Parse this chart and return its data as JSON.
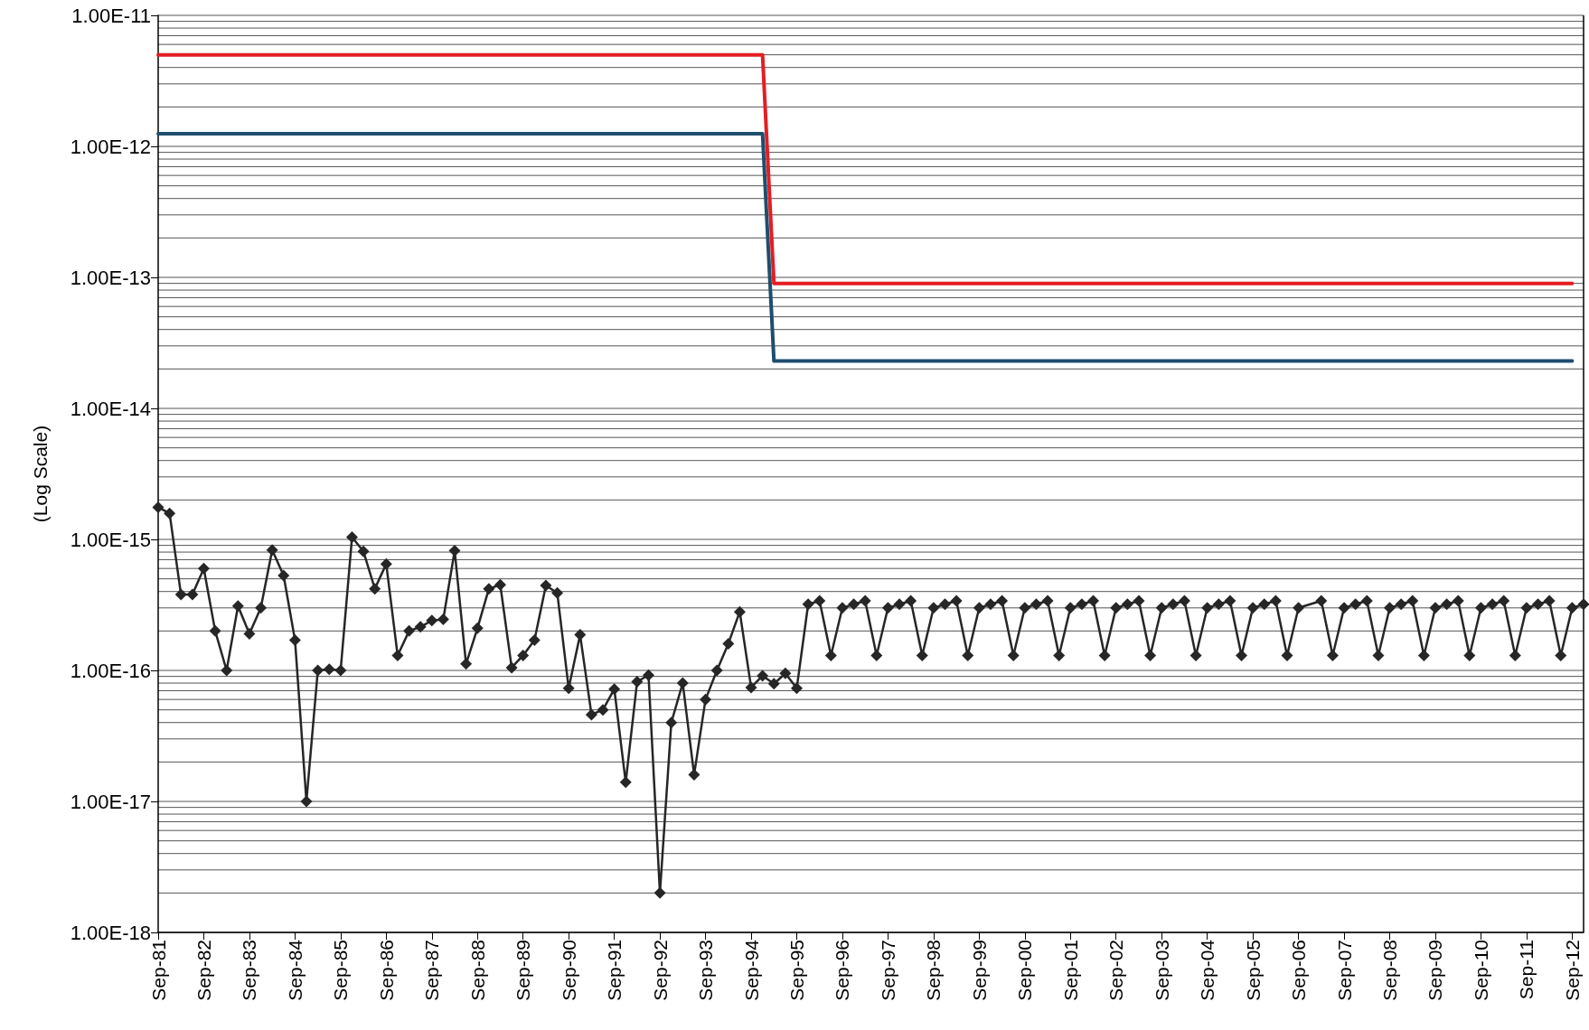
{
  "chart_data": {
    "type": "line",
    "ylabel": "(Log Scale)",
    "log": "y",
    "grid": "y",
    "line_style": "solid",
    "ylim": [
      1e-18,
      1e-11
    ],
    "yticks": [
      {
        "value": 1e-18,
        "label": "1.00E-18"
      },
      {
        "value": 1e-17,
        "label": "1.00E-17"
      },
      {
        "value": 1e-16,
        "label": "1.00E-16"
      },
      {
        "value": 1e-15,
        "label": "1.00E-15"
      },
      {
        "value": 1e-14,
        "label": "1.00E-14"
      },
      {
        "value": 1e-13,
        "label": "1.00E-13"
      },
      {
        "value": 1e-12,
        "label": "1.00E-12"
      },
      {
        "value": 1e-11,
        "label": "1.00E-11"
      }
    ],
    "categories": [
      "Sep-81",
      null,
      null,
      null,
      "Sep-82",
      null,
      null,
      null,
      "Sep-83",
      null,
      null,
      null,
      "Sep-84",
      null,
      null,
      null,
      "Sep-85",
      null,
      null,
      null,
      "Sep-86",
      null,
      null,
      null,
      "Sep-87",
      null,
      null,
      null,
      "Sep-88",
      null,
      null,
      null,
      "Sep-89",
      null,
      null,
      null,
      "Sep-90",
      null,
      null,
      null,
      "Sep-91",
      null,
      null,
      null,
      "Sep-92",
      null,
      null,
      null,
      "Sep-93",
      null,
      null,
      null,
      "Sep-94",
      null,
      null,
      null,
      "Sep-95",
      null,
      null,
      null,
      "Sep-96",
      null,
      null,
      null,
      "Sep-97",
      null,
      null,
      null,
      "Sep-98",
      null,
      null,
      null,
      "Sep-99",
      null,
      null,
      null,
      "Sep-00",
      null,
      null,
      null,
      "Sep-01",
      null,
      null,
      null,
      "Sep-02",
      null,
      null,
      null,
      "Sep-03",
      null,
      null,
      null,
      "Sep-04",
      null,
      null,
      null,
      "Sep-05",
      null,
      null,
      null,
      "Sep-06",
      null,
      null,
      null,
      "Sep-07",
      null,
      null,
      null,
      "Sep-08",
      null,
      null,
      null,
      "Sep-09",
      null,
      null,
      null,
      "Sep-10",
      null,
      null,
      null,
      "Sep-11",
      null,
      null,
      null,
      "Sep-12",
      null
    ],
    "series": [
      {
        "color": "#e31e24",
        "marker": "none",
        "values": [
          5e-12,
          5e-12,
          5e-12,
          5e-12,
          5e-12,
          5e-12,
          5e-12,
          5e-12,
          5e-12,
          5e-12,
          5e-12,
          5e-12,
          5e-12,
          5e-12,
          5e-12,
          5e-12,
          5e-12,
          5e-12,
          5e-12,
          5e-12,
          5e-12,
          5e-12,
          5e-12,
          5e-12,
          5e-12,
          5e-12,
          5e-12,
          5e-12,
          5e-12,
          5e-12,
          5e-12,
          5e-12,
          5e-12,
          5e-12,
          5e-12,
          5e-12,
          5e-12,
          5e-12,
          5e-12,
          5e-12,
          5e-12,
          5e-12,
          5e-12,
          5e-12,
          5e-12,
          5e-12,
          5e-12,
          5e-12,
          5e-12,
          5e-12,
          5e-12,
          5e-12,
          5e-12,
          5e-12,
          9e-14,
          9e-14,
          9e-14,
          9e-14,
          9e-14,
          9e-14,
          9e-14,
          9e-14,
          9e-14,
          9e-14,
          9e-14,
          9e-14,
          9e-14,
          9e-14,
          9e-14,
          9e-14,
          9e-14,
          9e-14,
          9e-14,
          9e-14,
          9e-14,
          9e-14,
          9e-14,
          9e-14,
          9e-14,
          9e-14,
          9e-14,
          9e-14,
          9e-14,
          9e-14,
          9e-14,
          9e-14,
          9e-14,
          9e-14,
          9e-14,
          9e-14,
          9e-14,
          9e-14,
          9e-14,
          9e-14,
          9e-14,
          9e-14,
          9e-14,
          9e-14,
          9e-14,
          9e-14,
          9e-14,
          9e-14,
          9e-14,
          9e-14,
          9e-14,
          9e-14,
          9e-14,
          9e-14,
          9e-14,
          9e-14,
          9e-14,
          9e-14,
          9e-14,
          9e-14,
          9e-14,
          9e-14,
          9e-14,
          9e-14,
          9e-14,
          9e-14,
          9e-14,
          9e-14,
          9e-14,
          9e-14,
          9e-14,
          null
        ]
      },
      {
        "color": "#1f4e6e",
        "marker": "none",
        "values": [
          1.25e-12,
          1.25e-12,
          1.25e-12,
          1.25e-12,
          1.25e-12,
          1.25e-12,
          1.25e-12,
          1.25e-12,
          1.25e-12,
          1.25e-12,
          1.25e-12,
          1.25e-12,
          1.25e-12,
          1.25e-12,
          1.25e-12,
          1.25e-12,
          1.25e-12,
          1.25e-12,
          1.25e-12,
          1.25e-12,
          1.25e-12,
          1.25e-12,
          1.25e-12,
          1.25e-12,
          1.25e-12,
          1.25e-12,
          1.25e-12,
          1.25e-12,
          1.25e-12,
          1.25e-12,
          1.25e-12,
          1.25e-12,
          1.25e-12,
          1.25e-12,
          1.25e-12,
          1.25e-12,
          1.25e-12,
          1.25e-12,
          1.25e-12,
          1.25e-12,
          1.25e-12,
          1.25e-12,
          1.25e-12,
          1.25e-12,
          1.25e-12,
          1.25e-12,
          1.25e-12,
          1.25e-12,
          1.25e-12,
          1.25e-12,
          1.25e-12,
          1.25e-12,
          1.25e-12,
          1.25e-12,
          2.3e-14,
          2.3e-14,
          2.3e-14,
          2.3e-14,
          2.3e-14,
          2.3e-14,
          2.3e-14,
          2.3e-14,
          2.3e-14,
          2.3e-14,
          2.3e-14,
          2.3e-14,
          2.3e-14,
          2.3e-14,
          2.3e-14,
          2.3e-14,
          2.3e-14,
          2.3e-14,
          2.3e-14,
          2.3e-14,
          2.3e-14,
          2.3e-14,
          2.3e-14,
          2.3e-14,
          2.3e-14,
          2.3e-14,
          2.3e-14,
          2.3e-14,
          2.3e-14,
          2.3e-14,
          2.3e-14,
          2.3e-14,
          2.3e-14,
          2.3e-14,
          2.3e-14,
          2.3e-14,
          2.3e-14,
          2.3e-14,
          2.3e-14,
          2.3e-14,
          2.3e-14,
          2.3e-14,
          2.3e-14,
          2.3e-14,
          2.3e-14,
          2.3e-14,
          2.3e-14,
          2.3e-14,
          2.3e-14,
          2.3e-14,
          2.3e-14,
          2.3e-14,
          2.3e-14,
          2.3e-14,
          2.3e-14,
          2.3e-14,
          2.3e-14,
          2.3e-14,
          2.3e-14,
          2.3e-14,
          2.3e-14,
          2.3e-14,
          2.3e-14,
          2.3e-14,
          2.3e-14,
          2.3e-14,
          2.3e-14,
          2.3e-14,
          2.3e-14,
          2.3e-14,
          2.3e-14,
          null
        ]
      },
      {
        "color": "#262626",
        "marker": "diamond",
        "values": [
          1.76e-15,
          1.58e-15,
          3.8e-16,
          3.8e-16,
          6e-16,
          2e-16,
          1e-16,
          3.1e-16,
          1.9e-16,
          3e-16,
          8.3e-16,
          5.3e-16,
          1.7e-16,
          1e-17,
          1e-16,
          1.02e-16,
          1e-16,
          1.04e-15,
          8.1e-16,
          4.2e-16,
          6.5e-16,
          1.3e-16,
          2e-16,
          2.15e-16,
          2.4e-16,
          2.45e-16,
          8.2e-16,
          1.12e-16,
          2.1e-16,
          4.2e-16,
          4.5e-16,
          1.05e-16,
          1.3e-16,
          1.7e-16,
          4.45e-16,
          3.9e-16,
          7.3e-17,
          1.87e-16,
          4.6e-17,
          5e-17,
          7.2e-17,
          1.4e-17,
          8.2e-17,
          9.2e-17,
          2e-18,
          4e-17,
          8e-17,
          1.6e-17,
          6e-17,
          1e-16,
          1.6e-16,
          2.8e-16,
          7.4e-17,
          9.1e-17,
          7.9e-17,
          9.5e-17,
          7.3e-17,
          3.2e-16,
          3.4e-16,
          1.3e-16,
          3e-16,
          3.2e-16,
          3.4e-16,
          1.3e-16,
          3e-16,
          3.2e-16,
          3.4e-16,
          1.3e-16,
          3e-16,
          3.2e-16,
          3.4e-16,
          1.3e-16,
          3e-16,
          3.2e-16,
          3.4e-16,
          1.3e-16,
          3e-16,
          3.2e-16,
          3.4e-16,
          1.3e-16,
          3e-16,
          3.2e-16,
          3.4e-16,
          1.3e-16,
          3e-16,
          3.2e-16,
          3.4e-16,
          1.3e-16,
          3e-16,
          3.2e-16,
          3.4e-16,
          1.3e-16,
          3e-16,
          3.2e-16,
          3.4e-16,
          1.3e-16,
          3e-16,
          3.2e-16,
          3.4e-16,
          1.3e-16,
          3e-16,
          null,
          3.4e-16,
          1.3e-16,
          3e-16,
          3.2e-16,
          3.4e-16,
          1.3e-16,
          3e-16,
          3.2e-16,
          3.4e-16,
          1.3e-16,
          3e-16,
          3.2e-16,
          3.4e-16,
          1.3e-16,
          3e-16,
          3.2e-16,
          3.4e-16,
          1.3e-16,
          3e-16,
          3.2e-16,
          3.4e-16,
          1.3e-16,
          3e-16,
          3.2e-16
        ]
      }
    ]
  }
}
